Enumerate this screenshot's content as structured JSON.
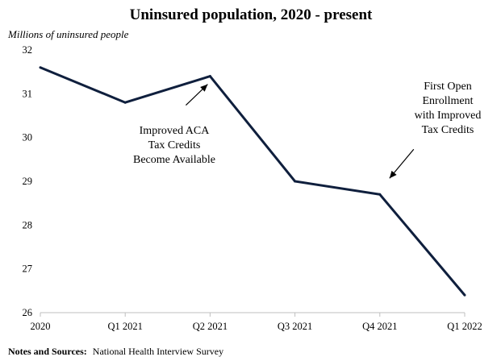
{
  "chart_data": {
    "type": "line",
    "title": "Uninsured population, 2020 - present",
    "ylabel": "Millions of uninsured people",
    "xlabel": "",
    "categories": [
      "2020",
      "Q1 2021",
      "Q2 2021",
      "Q3 2021",
      "Q4 2021",
      "Q1 2022"
    ],
    "series": [
      {
        "values": [
          31.6,
          30.8,
          31.4,
          29.0,
          28.7,
          26.4
        ],
        "color": "#0f1f3d"
      }
    ],
    "ylim": [
      26,
      32
    ],
    "yticks": [
      26,
      27,
      28,
      29,
      30,
      31,
      32
    ],
    "grid": false,
    "legend": "none",
    "annotations": [
      {
        "lines": [
          "Improved ACA",
          "Tax Credits",
          "Become Available"
        ],
        "category": "Q2 2021"
      },
      {
        "lines": [
          "First Open",
          "Enrollment",
          "with Improved",
          "Tax Credits"
        ],
        "category": "Q4 2021"
      }
    ]
  },
  "footer": {
    "label": "Notes and Sources:",
    "text": "National Health Interview Survey"
  }
}
